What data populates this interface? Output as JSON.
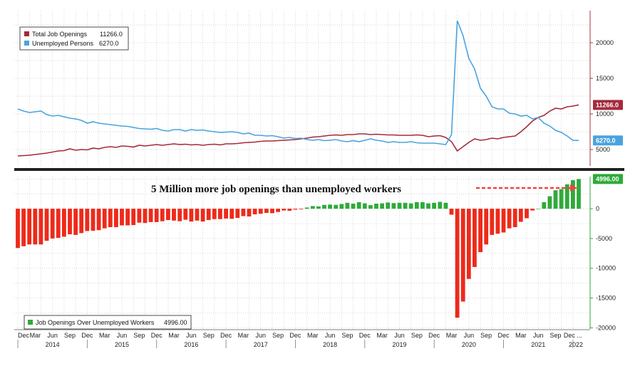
{
  "chart_data": [
    {
      "type": "line",
      "panel": "top",
      "x": [
        "2013-12",
        "2014-01",
        "2014-02",
        "2014-03",
        "2014-04",
        "2014-05",
        "2014-06",
        "2014-07",
        "2014-08",
        "2014-09",
        "2014-10",
        "2014-11",
        "2014-12",
        "2015-01",
        "2015-02",
        "2015-03",
        "2015-04",
        "2015-05",
        "2015-06",
        "2015-07",
        "2015-08",
        "2015-09",
        "2015-10",
        "2015-11",
        "2015-12",
        "2016-01",
        "2016-02",
        "2016-03",
        "2016-04",
        "2016-05",
        "2016-06",
        "2016-07",
        "2016-08",
        "2016-09",
        "2016-10",
        "2016-11",
        "2016-12",
        "2017-01",
        "2017-02",
        "2017-03",
        "2017-04",
        "2017-05",
        "2017-06",
        "2017-07",
        "2017-08",
        "2017-09",
        "2017-10",
        "2017-11",
        "2017-12",
        "2018-01",
        "2018-02",
        "2018-03",
        "2018-04",
        "2018-05",
        "2018-06",
        "2018-07",
        "2018-08",
        "2018-09",
        "2018-10",
        "2018-11",
        "2018-12",
        "2019-01",
        "2019-02",
        "2019-03",
        "2019-04",
        "2019-05",
        "2019-06",
        "2019-07",
        "2019-08",
        "2019-09",
        "2019-10",
        "2019-11",
        "2019-12",
        "2020-01",
        "2020-02",
        "2020-03",
        "2020-04",
        "2020-05",
        "2020-06",
        "2020-07",
        "2020-08",
        "2020-09",
        "2020-10",
        "2020-11",
        "2020-12",
        "2021-01",
        "2021-02",
        "2021-03",
        "2021-04",
        "2021-05",
        "2021-06",
        "2021-07",
        "2021-08",
        "2021-09",
        "2021-10",
        "2021-11",
        "2021-12",
        "2022-01"
      ],
      "series": [
        {
          "name": "Total Job Openings",
          "color": "#a52a3a",
          "last_value": "11266.0",
          "values": [
            4100,
            4150,
            4200,
            4300,
            4400,
            4500,
            4650,
            4800,
            4850,
            5100,
            4900,
            5000,
            4950,
            5200,
            5100,
            5300,
            5400,
            5300,
            5500,
            5450,
            5350,
            5600,
            5500,
            5600,
            5700,
            5600,
            5700,
            5800,
            5700,
            5750,
            5650,
            5700,
            5600,
            5700,
            5750,
            5650,
            5800,
            5800,
            5850,
            5950,
            6000,
            6050,
            6150,
            6200,
            6200,
            6250,
            6300,
            6350,
            6400,
            6500,
            6600,
            6750,
            6800,
            6900,
            7000,
            7050,
            7000,
            7100,
            7100,
            7200,
            7200,
            7100,
            7150,
            7100,
            7050,
            7050,
            7000,
            7000,
            7000,
            7050,
            7000,
            6800,
            6900,
            6950,
            6700,
            6100,
            4800,
            5400,
            6000,
            6500,
            6300,
            6400,
            6600,
            6500,
            6700,
            6800,
            6900,
            7500,
            8200,
            9000,
            9500,
            9800,
            10400,
            10800,
            10700,
            11000,
            11100,
            11266
          ]
        },
        {
          "name": "Unemployed Persons",
          "color": "#4aa3df",
          "last_value": "6270.0",
          "values": [
            10700,
            10400,
            10200,
            10300,
            10400,
            9900,
            9700,
            9800,
            9600,
            9400,
            9300,
            9100,
            8700,
            8900,
            8700,
            8600,
            8500,
            8400,
            8300,
            8250,
            8100,
            7950,
            7900,
            7850,
            7950,
            7700,
            7600,
            7800,
            7800,
            7600,
            7800,
            7700,
            7750,
            7600,
            7500,
            7400,
            7450,
            7500,
            7400,
            7200,
            7300,
            7000,
            7000,
            6900,
            6950,
            6800,
            6600,
            6700,
            6550,
            6600,
            6400,
            6300,
            6400,
            6250,
            6300,
            6400,
            6200,
            6100,
            6250,
            6100,
            6300,
            6500,
            6300,
            6200,
            6000,
            6100,
            6000,
            6000,
            6100,
            5950,
            5900,
            5900,
            5900,
            5800,
            5700,
            7100,
            23100,
            21000,
            17800,
            16300,
            13600,
            12500,
            11000,
            10700,
            10700,
            10100,
            10000,
            9700,
            9800,
            9300,
            9500,
            8700,
            8300,
            7700,
            7400,
            6900,
            6300,
            6270
          ]
        }
      ],
      "ylim": [
        2700,
        24500
      ],
      "yticks": [
        5000,
        10000,
        15000,
        20000
      ],
      "grid": true,
      "legend": "top-left"
    },
    {
      "type": "bar",
      "panel": "bottom",
      "series": [
        {
          "name": "Job Openings Over Unemployed Workers",
          "last_value": "4996.00",
          "positive_color": "#2faa3a",
          "negative_color": "#ee2a1a",
          "values": [
            -6600,
            -6300,
            -6000,
            -6000,
            -6000,
            -5400,
            -5000,
            -4900,
            -4700,
            -4300,
            -4400,
            -4100,
            -3750,
            -3700,
            -3600,
            -3300,
            -3100,
            -3100,
            -2800,
            -2800,
            -2750,
            -2350,
            -2400,
            -2250,
            -2250,
            -2100,
            -1900,
            -2000,
            -2100,
            -1850,
            -2150,
            -2000,
            -2150,
            -1900,
            -1750,
            -1750,
            -1650,
            -1700,
            -1550,
            -1250,
            -1300,
            -950,
            -850,
            -700,
            -750,
            -550,
            -300,
            -350,
            -150,
            -100,
            200,
            450,
            400,
            650,
            700,
            650,
            800,
            1000,
            850,
            1100,
            900,
            600,
            850,
            900,
            1050,
            950,
            1000,
            1000,
            900,
            1100,
            1100,
            900,
            1000,
            1150,
            1000,
            -1000,
            -18300,
            -15600,
            -11800,
            -9800,
            -7300,
            -6000,
            -4400,
            -4200,
            -4000,
            -3300,
            -3100,
            -2200,
            -1600,
            -300,
            0,
            1100,
            2100,
            3100,
            3300,
            4100,
            4800,
            4996
          ]
        }
      ],
      "ylim": [
        -20200,
        5400
      ],
      "yticks": [
        -20000,
        -15000,
        -10000,
        -5000,
        0
      ],
      "annotation": "5 Million more job openings than unemployed workers",
      "grid": true,
      "legend": "bottom-left"
    }
  ],
  "xaxis": {
    "month_labels": [
      "Dec",
      "Mar",
      "Jun",
      "Sep",
      "Dec",
      "Mar",
      "Jun",
      "Sep",
      "Dec",
      "Mar",
      "Jun",
      "Sep",
      "Dec",
      "Mar",
      "Jun",
      "Sep",
      "Dec",
      "Mar",
      "Jun",
      "Sep",
      "Dec",
      "Mar",
      "Jun",
      "Sep",
      "Dec",
      "Mar",
      "Jun",
      "Sep",
      "Dec",
      "Mar",
      "Jun",
      "Sep",
      "Dec ..."
    ],
    "year_labels": [
      "2014",
      "2015",
      "2016",
      "2017",
      "2018",
      "2019",
      "2020",
      "2021",
      "2022"
    ]
  }
}
